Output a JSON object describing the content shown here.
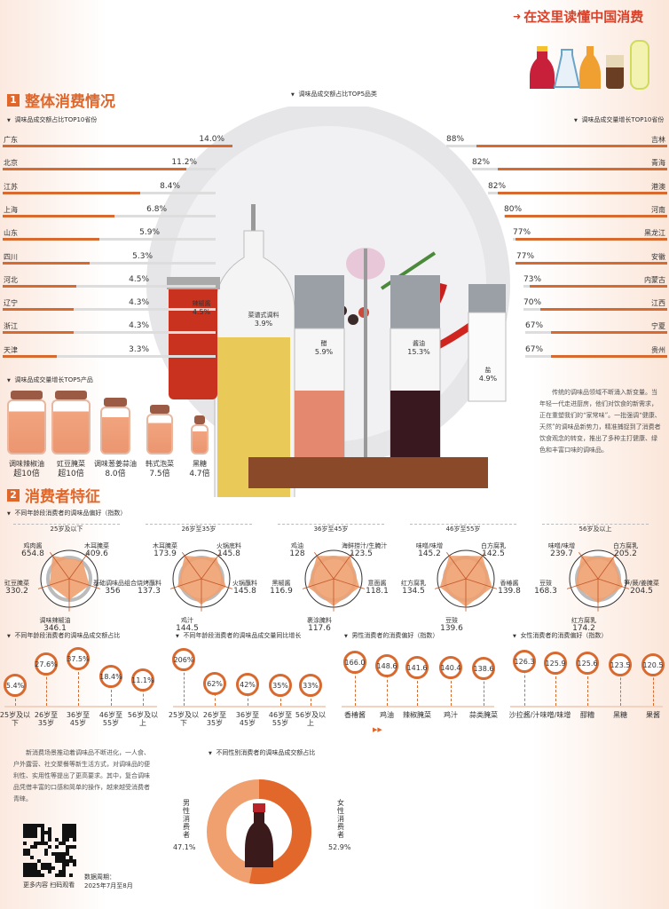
{
  "header": {
    "slogan": "在这里读懂中国消费"
  },
  "section1": {
    "num": "1",
    "title": "整体消费情况"
  },
  "left_chart": {
    "subtitle": "调味品成交额占比TOP10省份",
    "rows": [
      {
        "label": "广东",
        "value": "14.0%",
        "v": 14.0
      },
      {
        "label": "北京",
        "value": "11.2%",
        "v": 11.2
      },
      {
        "label": "江苏",
        "value": "8.4%",
        "v": 8.4
      },
      {
        "label": "上海",
        "value": "6.8%",
        "v": 6.8
      },
      {
        "label": "山东",
        "value": "5.9%",
        "v": 5.9
      },
      {
        "label": "四川",
        "value": "5.3%",
        "v": 5.3
      },
      {
        "label": "河北",
        "value": "4.5%",
        "v": 4.5
      },
      {
        "label": "辽宁",
        "value": "4.3%",
        "v": 4.3
      },
      {
        "label": "浙江",
        "value": "4.3%",
        "v": 4.3
      },
      {
        "label": "天津",
        "value": "3.3%",
        "v": 3.3
      }
    ]
  },
  "right_chart": {
    "subtitle": "调味品成交量增长TOP10省份",
    "rows": [
      {
        "label": "吉林",
        "value": "88%",
        "v": 88
      },
      {
        "label": "青海",
        "value": "82%",
        "v": 82
      },
      {
        "label": "港澳",
        "value": "82%",
        "v": 82
      },
      {
        "label": "河南",
        "value": "80%",
        "v": 80
      },
      {
        "label": "黑龙江",
        "value": "77%",
        "v": 77
      },
      {
        "label": "安徽",
        "value": "77%",
        "v": 77
      },
      {
        "label": "内蒙古",
        "value": "73%",
        "v": 73
      },
      {
        "label": "江西",
        "value": "70%",
        "v": 70
      },
      {
        "label": "宁夏",
        "value": "67%",
        "v": 67
      },
      {
        "label": "贵州",
        "value": "67%",
        "v": 67
      }
    ]
  },
  "top5_categories": {
    "subtitle": "调味品成交额占比TOP5品类",
    "items": [
      {
        "name": "辣椒酱",
        "value": "4.5%"
      },
      {
        "name": "菜谱式调料",
        "value": "3.9%"
      },
      {
        "name": "醋",
        "value": "5.9%"
      },
      {
        "name": "酱油",
        "value": "15.3%"
      },
      {
        "name": "盐",
        "value": "4.9%"
      }
    ]
  },
  "top5_products": {
    "subtitle": "调味品成交量增长TOP5产品",
    "items": [
      {
        "name": "调味辣椒油",
        "value": "超10倍"
      },
      {
        "name": "豇豆腌菜",
        "value": "超10倍"
      },
      {
        "name": "调味葱姜蒜油",
        "value": "8.0倍"
      },
      {
        "name": "韩式泡菜",
        "value": "7.5倍"
      },
      {
        "name": "黑糖",
        "value": "4.7倍"
      }
    ]
  },
  "para1": "传统的调味品领域不断涌入新变量。当年轻一代走进厨房，他们对饮食的新需求，正在重塑我们的“家常味”。一批强调“健康、天然”的调味品新势力，精准捕捉到了消费者饮食观念的转变，推出了多种主打健康、绿色和丰富口味的调味品。",
  "section2": {
    "num": "2",
    "title": "消费者特征"
  },
  "radar": {
    "subtitle": "不同年龄段消费者的调味品偏好（指数）",
    "panels": [
      {
        "title": "25岁及以下",
        "items": [
          {
            "name": "鸡肉酱",
            "value": 654.8
          },
          {
            "name": "木耳腌菜",
            "value": 409.6
          },
          {
            "name": "基础调味品组合",
            "value": 356.0
          },
          {
            "name": "调味辣椒油",
            "value": 346.1
          },
          {
            "name": "豇豆腌菜",
            "value": 330.2
          }
        ]
      },
      {
        "title": "26岁至35岁",
        "items": [
          {
            "name": "木耳腌菜",
            "value": 173.9
          },
          {
            "name": "火锅底料",
            "value": 145.8
          },
          {
            "name": "火锅蘸料",
            "value": 145.8
          },
          {
            "name": "鸡汁",
            "value": 144.5
          },
          {
            "name": "烧烤蘸料",
            "value": 137.3
          }
        ]
      },
      {
        "title": "36岁至45岁",
        "items": [
          {
            "name": "鸡油",
            "value": 128.0
          },
          {
            "name": "海鲜捞汁/生腌汁",
            "value": 123.5
          },
          {
            "name": "意面酱",
            "value": 118.1
          },
          {
            "name": "裹涂腌料",
            "value": 117.6
          },
          {
            "name": "黑椒酱",
            "value": 116.9
          }
        ]
      },
      {
        "title": "46岁至55岁",
        "items": [
          {
            "name": "味噌/味增",
            "value": 145.2
          },
          {
            "name": "白方腐乳",
            "value": 142.5
          },
          {
            "name": "香椿酱",
            "value": 139.8
          },
          {
            "name": "豆豉",
            "value": 139.6
          },
          {
            "name": "红方腐乳",
            "value": 134.5
          }
        ]
      },
      {
        "title": "56岁及以上",
        "items": [
          {
            "name": "味噌/味增",
            "value": 239.7
          },
          {
            "name": "白方腐乳",
            "value": 205.2
          },
          {
            "name": "笋/蕨/姜腌菜",
            "value": 204.5
          },
          {
            "name": "红方腐乳",
            "value": 174.2
          },
          {
            "name": "豆豉",
            "value": 168.3
          }
        ]
      }
    ]
  },
  "bubbles": [
    {
      "subtitle": "不同年龄段消费者的调味品成交额占比",
      "items": [
        {
          "cat": "25岁及以下",
          "value": "5.4%",
          "v": 5.4
        },
        {
          "cat": "26岁至35岁",
          "value": "27.6%",
          "v": 27.6
        },
        {
          "cat": "36岁至45岁",
          "value": "37.5%",
          "v": 37.5
        },
        {
          "cat": "46岁至55岁",
          "value": "18.4%",
          "v": 18.4
        },
        {
          "cat": "56岁及以上",
          "value": "11.1%",
          "v": 11.1
        }
      ]
    },
    {
      "subtitle": "不同年龄段消费者的调味品成交量同比增长",
      "items": [
        {
          "cat": "25岁及以下",
          "value": "206%",
          "v": 206
        },
        {
          "cat": "26岁至35岁",
          "value": "62%",
          "v": 62
        },
        {
          "cat": "36岁至45岁",
          "value": "42%",
          "v": 42
        },
        {
          "cat": "46岁至55岁",
          "value": "35%",
          "v": 35
        },
        {
          "cat": "56岁及以上",
          "value": "33%",
          "v": 33
        }
      ]
    },
    {
      "subtitle": "男性消费者的消费偏好（指数）",
      "items": [
        {
          "cat": "香椿酱",
          "value": "166.0",
          "v": 166.0
        },
        {
          "cat": "鸡油",
          "value": "148.6",
          "v": 148.6
        },
        {
          "cat": "辣椒腌菜",
          "value": "141.6",
          "v": 141.6
        },
        {
          "cat": "鸡汁",
          "value": "140.4",
          "v": 140.4
        },
        {
          "cat": "蒜类腌菜",
          "value": "138.6",
          "v": 138.6
        }
      ]
    },
    {
      "subtitle": "女性消费者的消费偏好（指数）",
      "items": [
        {
          "cat": "沙拉酱/汁",
          "value": "126.3",
          "v": 126.3
        },
        {
          "cat": "味噌/味增",
          "value": "125.9",
          "v": 125.9
        },
        {
          "cat": "醪糟",
          "value": "125.6",
          "v": 125.6
        },
        {
          "cat": "黑糖",
          "value": "123.5",
          "v": 123.5
        },
        {
          "cat": "果酱",
          "value": "120.5",
          "v": 120.5
        }
      ]
    }
  ],
  "para2": "新消费场景推动着调味品不断进化，一人食、户外露营、社交聚餐等新生活方式，对调味品的便利性、实用性等提出了更高要求。其中，复合调味品凭借丰富的口感和简单的操作，越来越受消费者青睐。",
  "gender": {
    "subtitle": "不同性别消费者的调味品成交额占比",
    "male_label": "男性消费者",
    "male_value": "47.1%",
    "male_v": 47.1,
    "female_label": "女性消费者",
    "female_value": "52.9%",
    "female_v": 52.9
  },
  "footer": {
    "qr_caption": "更多内容 扫码观看",
    "period_label": "数据周期：",
    "period_value": "2025年7月至8月"
  },
  "colors": {
    "accent": "#e0662a",
    "bar": "#d8692f",
    "male": "#f0a06e",
    "female": "#e2672a"
  }
}
